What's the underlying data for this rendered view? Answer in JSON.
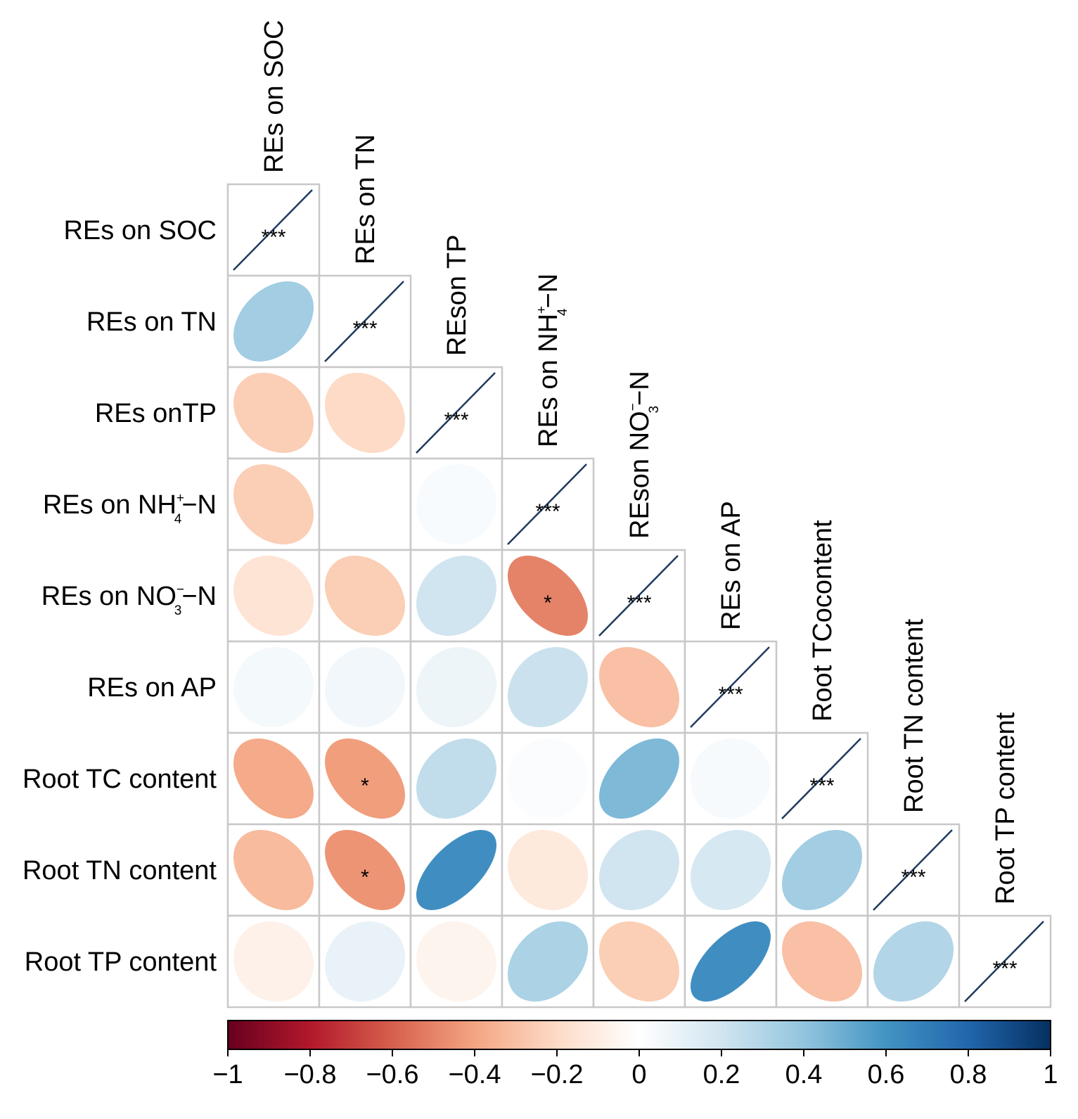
{
  "chart_data": {
    "type": "heatmap",
    "variant": "correlation-ellipse-lower-triangle",
    "row_labels": [
      {
        "pre": "REs on SOC"
      },
      {
        "pre": "REs on TN"
      },
      {
        "pre": "REs onTP"
      },
      {
        "pre": "REs on NH",
        "sub": "4",
        "sup": "+",
        "post": "−N"
      },
      {
        "pre": "REs on NO",
        "sub": "3",
        "sup": "−",
        "post": "−N"
      },
      {
        "pre": "REs on AP"
      },
      {
        "pre": "Root TC content"
      },
      {
        "pre": "Root TN content"
      },
      {
        "pre": "Root TP content"
      }
    ],
    "column_labels": [
      {
        "pre": "REs on SOC"
      },
      {
        "pre": "REs on TN"
      },
      {
        "pre": "REson TP"
      },
      {
        "pre": "REs on NH",
        "sub": "4",
        "sup": "+",
        "post": "−N"
      },
      {
        "pre": "REson NO",
        "sub": "3",
        "sup": "−",
        "post": "−N"
      },
      {
        "pre": "REs on AP"
      },
      {
        "pre": "Root TCocontent"
      },
      {
        "pre": "Root TN content"
      },
      {
        "pre": "Root TP content"
      }
    ],
    "matrix": [
      [
        1.0
      ],
      [
        0.35,
        1.0
      ],
      [
        -0.25,
        -0.2,
        1.0
      ],
      [
        -0.25,
        0.0,
        0.03,
        1.0
      ],
      [
        -0.15,
        -0.25,
        0.2,
        -0.5,
        1.0
      ],
      [
        0.05,
        0.06,
        0.08,
        0.22,
        -0.3,
        1.0
      ],
      [
        -0.38,
        -0.42,
        0.25,
        0.02,
        0.45,
        0.04,
        1.0
      ],
      [
        -0.32,
        -0.45,
        0.62,
        -0.12,
        0.2,
        0.18,
        0.35,
        1.0
      ],
      [
        -0.08,
        0.1,
        -0.06,
        0.32,
        -0.25,
        0.62,
        -0.3,
        0.3,
        1.0
      ]
    ],
    "significance": [
      [
        "***"
      ],
      [
        "",
        "***"
      ],
      [
        "",
        "",
        "***"
      ],
      [
        "",
        "",
        "",
        "***"
      ],
      [
        "",
        "",
        "",
        "*",
        "***"
      ],
      [
        "",
        "",
        "",
        "",
        "",
        "***"
      ],
      [
        "",
        "*",
        "",
        "",
        "",
        "",
        "***"
      ],
      [
        "",
        "*",
        "",
        "",
        "",
        "",
        "",
        "***"
      ],
      [
        "",
        "",
        "",
        "",
        "",
        "",
        "",
        "",
        "***"
      ]
    ],
    "colorbar": {
      "range": [
        -1,
        1
      ],
      "ticks": [
        "−1",
        "−0.8",
        "−0.6",
        "−0.4",
        "−0.2",
        "0",
        "0.2",
        "0.4",
        "0.6",
        "0.8",
        "1"
      ],
      "colors": [
        "#67001f",
        "#b2182b",
        "#d6604d",
        "#f4a582",
        "#fddbc7",
        "#ffffff",
        "#d1e5f0",
        "#92c5de",
        "#4393c3",
        "#2166ac",
        "#053061"
      ]
    },
    "diagonal_line_color": "#1f3a5f",
    "grid_color": "#c8c8c8"
  }
}
